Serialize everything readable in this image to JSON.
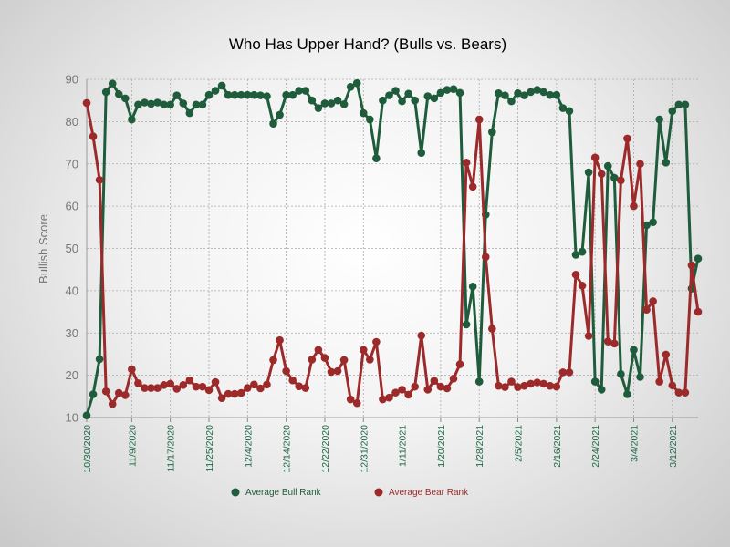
{
  "chart_data": {
    "type": "line",
    "title": "Who Has Upper Hand? (Bulls vs. Bears)",
    "xlabel": "",
    "ylabel": "Bullish Score",
    "ylim": [
      10,
      90
    ],
    "yticks": [
      10,
      20,
      30,
      40,
      50,
      60,
      70,
      80,
      90
    ],
    "x_tick_labels": [
      "10/30/2020",
      "11/9/2020",
      "11/17/2020",
      "11/25/2020",
      "12/4/2020",
      "12/14/2020",
      "12/22/2020",
      "12/31/2020",
      "1/11/2021",
      "1/20/2021",
      "1/28/2021",
      "2/5/2021",
      "2/16/2021",
      "2/24/2021",
      "3/4/2021",
      "3/12/2021"
    ],
    "x_tick_indices": [
      0,
      7,
      13,
      19,
      25,
      31,
      37,
      43,
      49,
      55,
      61,
      67,
      73,
      79,
      85,
      91
    ],
    "grid": true,
    "legend_position": "bottom",
    "series": [
      {
        "name": "Average Bull Rank",
        "color": "#1e5c3c",
        "values": [
          10.5,
          15.5,
          23.8,
          87,
          89,
          86.5,
          85.5,
          80.5,
          84,
          84.5,
          84.2,
          84.5,
          84,
          84,
          86.2,
          84.3,
          82,
          84,
          84,
          86.3,
          87.3,
          88.5,
          86.3,
          86.3,
          86.3,
          86.3,
          86.3,
          86.2,
          86,
          79.5,
          81.6,
          86.3,
          86.3,
          87.3,
          87.3,
          85,
          83.2,
          84.3,
          84.3,
          85,
          84.1,
          88.2,
          89.1,
          82,
          80.5,
          71.3,
          85,
          86.2,
          87.3,
          84.8,
          86.6,
          85,
          72.6,
          86,
          85.5,
          86.8,
          87.5,
          87.7,
          86.8,
          32,
          41,
          18.5,
          58,
          77.5,
          86.7,
          86.2,
          84.8,
          86.7,
          86.2,
          87,
          87.5,
          87,
          86.3,
          86.3,
          83.2,
          82.5,
          48.5,
          49.2,
          68,
          18.5,
          16.6,
          69.5,
          66.7,
          20.3,
          15.5,
          26,
          19.6,
          55.5,
          56.2,
          80.5,
          70.3,
          82.5,
          84,
          84,
          40.5,
          47.6
        ]
      },
      {
        "name": "Average Bear Rank",
        "color": "#9c2a2a",
        "values": [
          84.4,
          76.5,
          66.2,
          16.2,
          13.2,
          15.8,
          15.3,
          21.4,
          18.1,
          17,
          17,
          17,
          17.7,
          18,
          16.8,
          17.7,
          18.8,
          17.3,
          17.3,
          16.5,
          18.4,
          14.6,
          15.6,
          15.6,
          15.8,
          17,
          17.8,
          16.9,
          17.8,
          23.6,
          28.3,
          21,
          18.8,
          17.4,
          17,
          23.7,
          26,
          24.1,
          20.8,
          21,
          23.6,
          14.3,
          13.4,
          26,
          23.7,
          27.9,
          14.3,
          14.7,
          15.9,
          16.6,
          15.4,
          17.3,
          29.4,
          16.6,
          18.7,
          17.3,
          16.9,
          19.2,
          22.6,
          70.3,
          64.6,
          80.5,
          48,
          31,
          17.5,
          17.2,
          18.5,
          17.2,
          17.5,
          18,
          18.3,
          18,
          17.5,
          17.3,
          20.7,
          20.7,
          43.8,
          41.2,
          29.3,
          71.5,
          67.6,
          28,
          27.5,
          66.1,
          76,
          60,
          70,
          35.5,
          37.5,
          18.5,
          24.9,
          17.6,
          15.9,
          15.9,
          46,
          35
        ]
      }
    ]
  }
}
